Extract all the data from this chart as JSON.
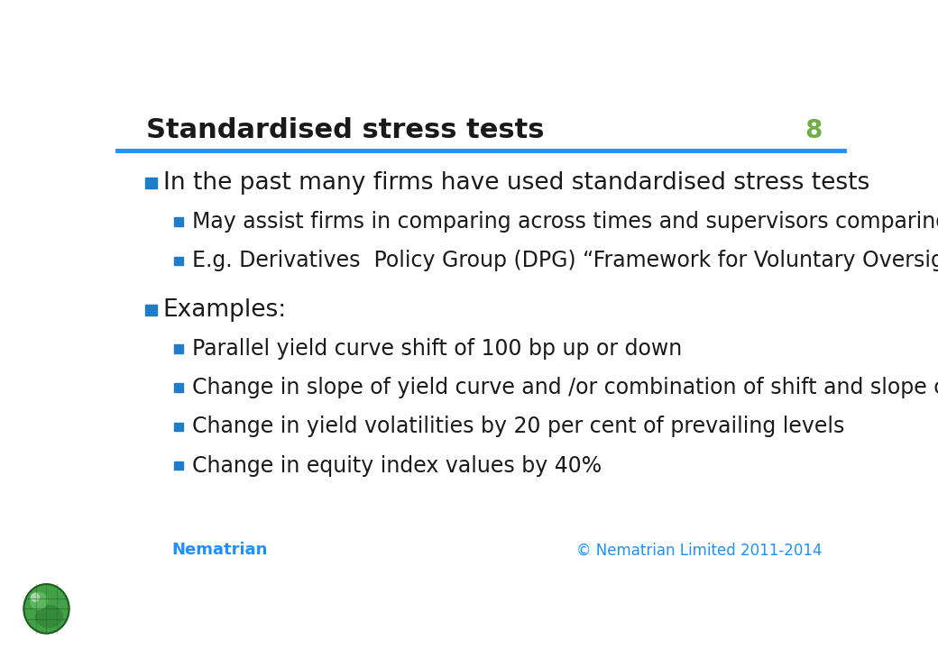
{
  "title": "Standardised stress tests",
  "slide_number": "8",
  "title_color": "#1a1a1a",
  "title_fontsize": 22,
  "slide_number_color": "#70ad47",
  "slide_number_fontsize": 20,
  "header_line_color": "#1e90ff",
  "background_color": "#ffffff",
  "bullet_color": "#1e7cc8",
  "text_color": "#1a1a1a",
  "footer_text": "© Nematrian Limited 2011-2014",
  "footer_color": "#1e90ff",
  "brand_text": "Nematrian",
  "brand_color": "#1e90ff",
  "level1_fontsize": 19,
  "level2_fontsize": 17,
  "bullets": [
    {
      "level": 1,
      "text": "In the past many firms have used standardised stress tests"
    },
    {
      "level": 2,
      "text": "May assist firms in comparing across times and supervisors comparing firms"
    },
    {
      "level": 2,
      "text": "E.g. Derivatives  Policy Group (DPG) “Framework for Voluntary Oversight”"
    },
    {
      "level": 1,
      "text": "Examples:"
    },
    {
      "level": 2,
      "text": "Parallel yield curve shift of 100 bp up or down"
    },
    {
      "level": 2,
      "text": "Change in slope of yield curve and /or combination of shift and slope change"
    },
    {
      "level": 2,
      "text": "Change in yield volatilities by 20 per cent of prevailing levels"
    },
    {
      "level": 2,
      "text": "Change in equity index values by 40%"
    }
  ]
}
